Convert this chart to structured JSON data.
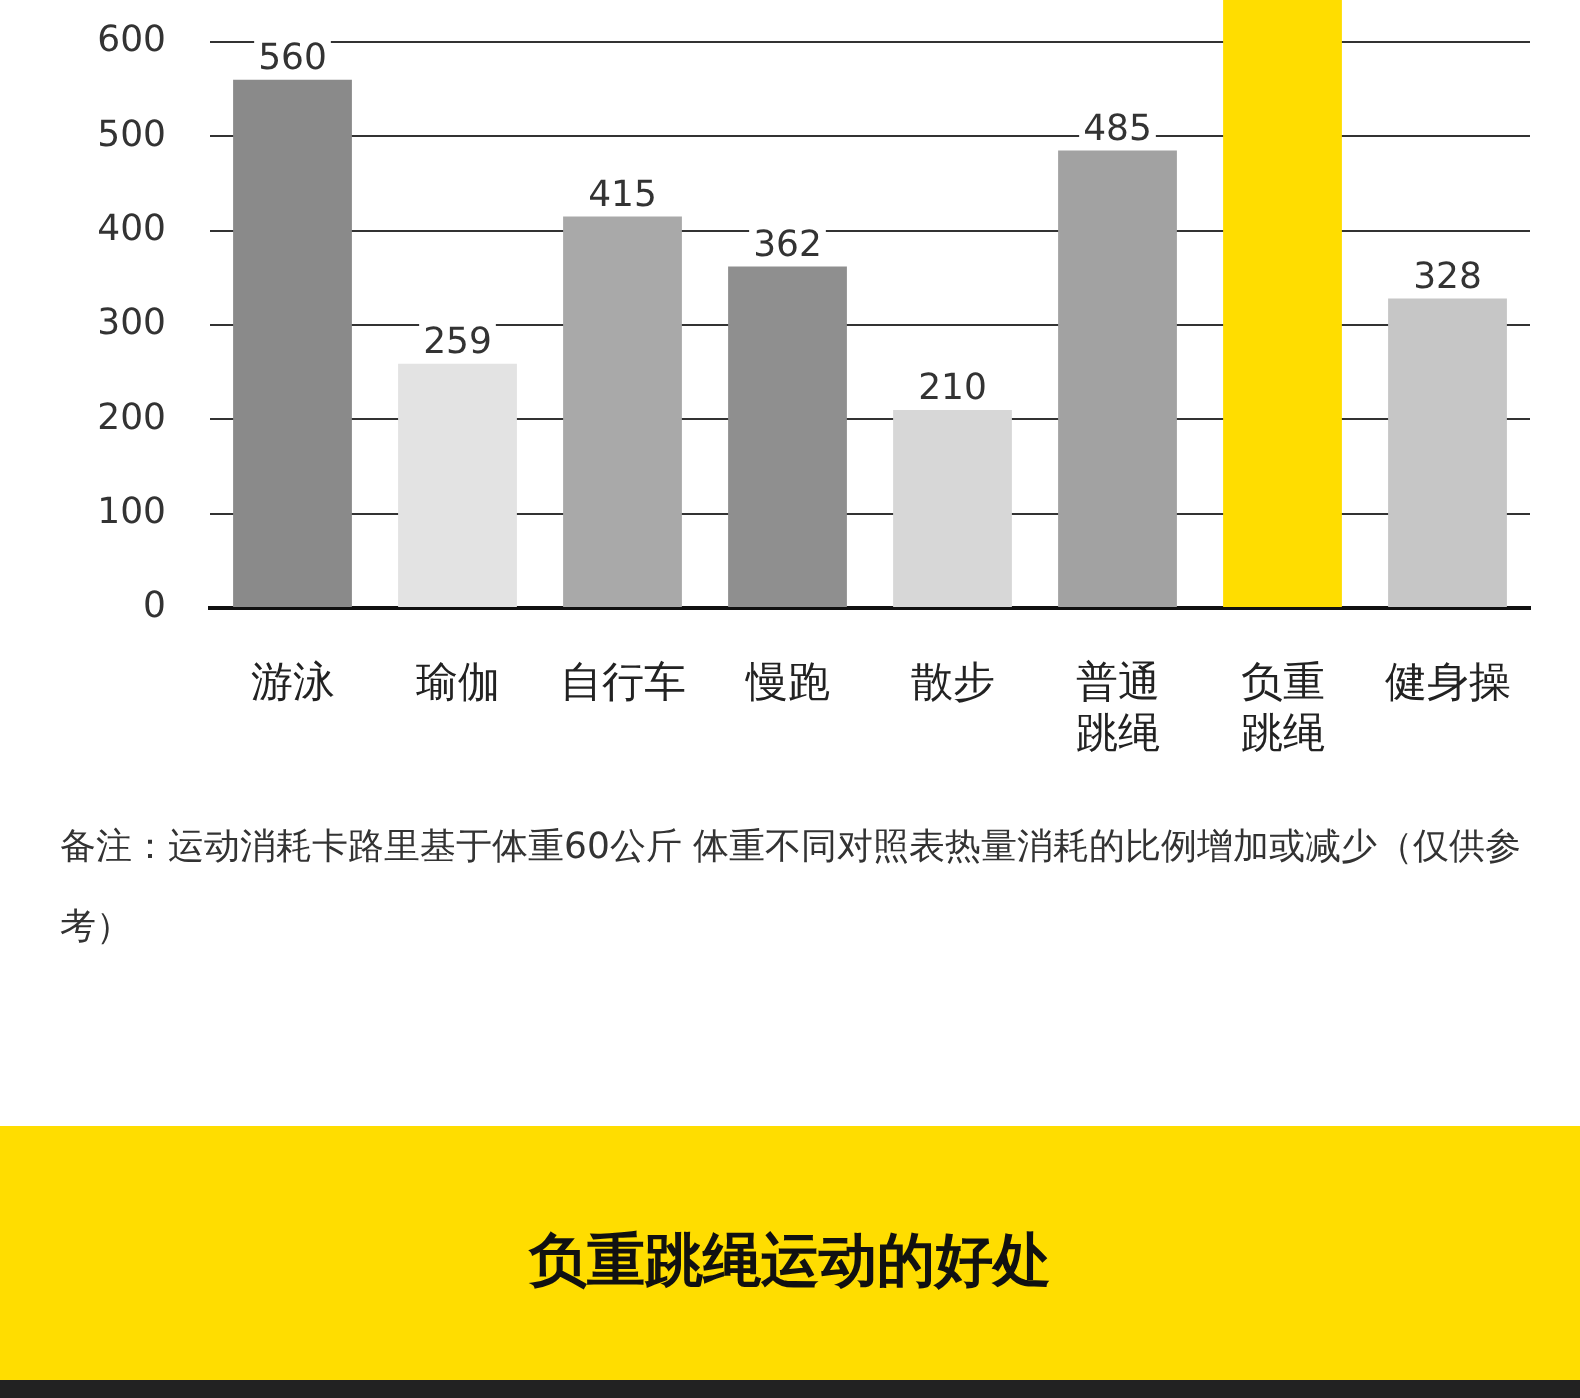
{
  "chart_data": {
    "type": "bar",
    "categories": [
      "游泳",
      "瑜伽",
      "自行车",
      "慢跑",
      "散步",
      "普通跳绳",
      "负重跳绳",
      "健身操"
    ],
    "values": [
      560,
      259,
      415,
      362,
      210,
      485,
      645,
      328
    ],
    "colors": [
      "#8a8a8a",
      "#e3e3e3",
      "#a9a9a9",
      "#8f8f8f",
      "#d7d7d7",
      "#a2a2a2",
      "#ffdd00",
      "#c6c6c6"
    ],
    "value_labels": [
      "560",
      "259",
      "415",
      "362",
      "210",
      "485",
      null,
      "328"
    ],
    "ylim": [
      0,
      645
    ],
    "yticks": [
      0,
      100,
      200,
      300,
      400,
      500,
      600
    ],
    "grid": "y",
    "annotations": [
      "备注：运动消耗卡路里基于体重60公斤 体重不同对照表热量消耗的比例增加或减少（仅供参考）",
      "负重跳绳运动的好处"
    ]
  }
}
